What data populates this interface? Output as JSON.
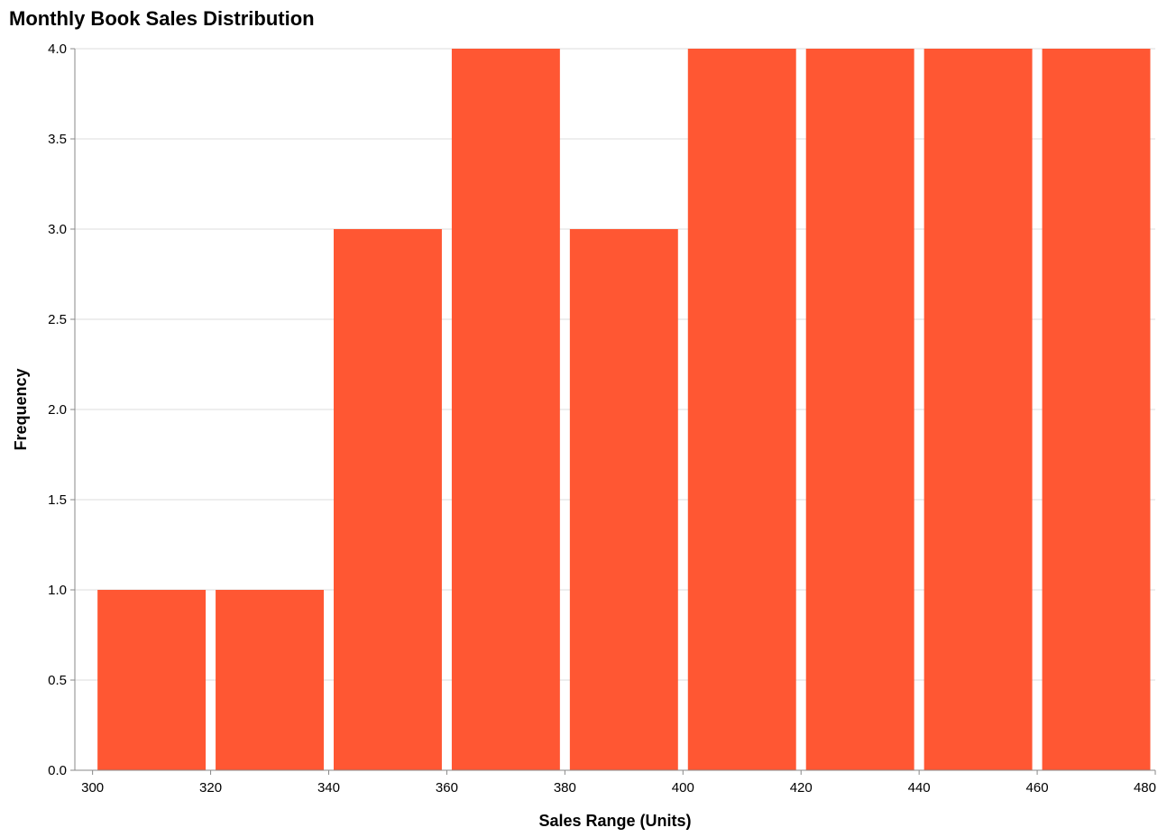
{
  "chart_data": {
    "type": "bar",
    "title": "Monthly Book Sales Distribution",
    "xlabel": "Sales Range (Units)",
    "ylabel": "Frequency",
    "bins": [
      {
        "start": 300,
        "end": 320,
        "count": 1
      },
      {
        "start": 320,
        "end": 340,
        "count": 1
      },
      {
        "start": 340,
        "end": 360,
        "count": 3
      },
      {
        "start": 360,
        "end": 380,
        "count": 4
      },
      {
        "start": 380,
        "end": 400,
        "count": 3
      },
      {
        "start": 400,
        "end": 420,
        "count": 4
      },
      {
        "start": 420,
        "end": 440,
        "count": 4
      },
      {
        "start": 440,
        "end": 460,
        "count": 4
      },
      {
        "start": 460,
        "end": 480,
        "count": 4
      }
    ],
    "xlim": [
      297,
      480
    ],
    "ylim": [
      0,
      4
    ],
    "x_ticks": [
      300,
      320,
      340,
      360,
      380,
      400,
      420,
      440,
      460,
      480
    ],
    "y_ticks": [
      "0.0",
      "0.5",
      "1.0",
      "1.5",
      "2.0",
      "2.5",
      "3.0",
      "3.5",
      "4.0"
    ],
    "bar_color": "#ff5733",
    "grid": true
  }
}
